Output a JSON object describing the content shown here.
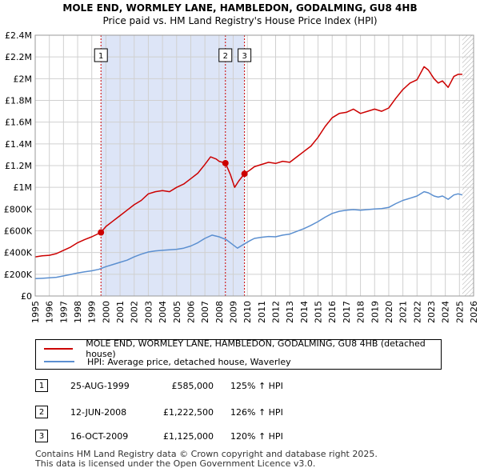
{
  "title": "MOLE END, WORMLEY LANE, HAMBLEDON, GODALMING, GU8 4HB",
  "subtitle": "Price paid vs. HM Land Registry's House Price Index (HPI)",
  "colors": {
    "property": "#cc0000",
    "hpi": "#5b8fd0",
    "shade": "#dde5f7",
    "hatch": "#aaaaaa",
    "marker": "#cc0000"
  },
  "chart_data": {
    "type": "line",
    "title": "MOLE END, WORMLEY LANE, HAMBLEDON, GODALMING, GU8 4HB",
    "xlabel": "",
    "ylabel": "",
    "xlim": [
      1995,
      2026
    ],
    "ylim": [
      0,
      2400000
    ],
    "grid": true,
    "x_ticks": [
      "1995",
      "1996",
      "1997",
      "1998",
      "1999",
      "2000",
      "2001",
      "2002",
      "2003",
      "2004",
      "2005",
      "2006",
      "2007",
      "2008",
      "2009",
      "2010",
      "2011",
      "2012",
      "2013",
      "2014",
      "2015",
      "2016",
      "2017",
      "2018",
      "2019",
      "2020",
      "2021",
      "2022",
      "2023",
      "2024",
      "2025",
      "2026"
    ],
    "y_ticks": [
      {
        "value": 0,
        "label": "£0"
      },
      {
        "value": 200000,
        "label": "£200K"
      },
      {
        "value": 400000,
        "label": "£400K"
      },
      {
        "value": 600000,
        "label": "£600K"
      },
      {
        "value": 800000,
        "label": "£800K"
      },
      {
        "value": 1000000,
        "label": "£1M"
      },
      {
        "value": 1200000,
        "label": "£1.2M"
      },
      {
        "value": 1400000,
        "label": "£1.4M"
      },
      {
        "value": 1600000,
        "label": "£1.6M"
      },
      {
        "value": 1800000,
        "label": "£1.8M"
      },
      {
        "value": 2000000,
        "label": "£2M"
      },
      {
        "value": 2200000,
        "label": "£2.2M"
      },
      {
        "value": 2400000,
        "label": "£2.4M"
      }
    ],
    "shaded_period": [
      1999.65,
      2009.8
    ],
    "hatched_after": 2025.2,
    "series": [
      {
        "name": "MOLE END, WORMLEY LANE, HAMBLEDON, GODALMING, GU8 4HB (detached house)",
        "color": "#cc0000",
        "x": [
          1995.0,
          1995.5,
          1996.0,
          1996.5,
          1997.0,
          1997.5,
          1998.0,
          1998.5,
          1999.0,
          1999.65,
          2000.0,
          2000.5,
          2001.0,
          2001.5,
          2002.0,
          2002.5,
          2003.0,
          2003.5,
          2004.0,
          2004.5,
          2005.0,
          2005.5,
          2006.0,
          2006.5,
          2007.0,
          2007.4,
          2007.8,
          2008.0,
          2008.45,
          2008.8,
          2009.1,
          2009.4,
          2009.8,
          2010.2,
          2010.5,
          2011.0,
          2011.5,
          2012.0,
          2012.5,
          2013.0,
          2013.5,
          2014.0,
          2014.5,
          2015.0,
          2015.5,
          2016.0,
          2016.5,
          2017.0,
          2017.5,
          2018.0,
          2018.5,
          2019.0,
          2019.5,
          2020.0,
          2020.5,
          2021.0,
          2021.5,
          2022.0,
          2022.5,
          2022.8,
          2023.2,
          2023.5,
          2023.8,
          2024.2,
          2024.6,
          2024.9,
          2025.2
        ],
        "y": [
          360000,
          370000,
          375000,
          390000,
          420000,
          450000,
          490000,
          520000,
          545000,
          585000,
          640000,
          690000,
          740000,
          790000,
          840000,
          880000,
          940000,
          960000,
          970000,
          960000,
          1000000,
          1030000,
          1080000,
          1130000,
          1210000,
          1280000,
          1260000,
          1240000,
          1222500,
          1120000,
          1000000,
          1060000,
          1125000,
          1160000,
          1190000,
          1210000,
          1230000,
          1220000,
          1240000,
          1230000,
          1280000,
          1330000,
          1380000,
          1460000,
          1560000,
          1640000,
          1680000,
          1690000,
          1720000,
          1680000,
          1700000,
          1720000,
          1700000,
          1730000,
          1820000,
          1900000,
          1960000,
          1990000,
          2110000,
          2080000,
          2000000,
          1960000,
          1980000,
          1920000,
          2020000,
          2040000,
          2040000
        ]
      },
      {
        "name": "HPI: Average price, detached house, Waverley",
        "color": "#5b8fd0",
        "x": [
          1995.0,
          1995.5,
          1996.0,
          1996.5,
          1997.0,
          1997.5,
          1998.0,
          1998.5,
          1999.0,
          1999.5,
          2000.0,
          2000.5,
          2001.0,
          2001.5,
          2002.0,
          2002.5,
          2003.0,
          2003.5,
          2004.0,
          2004.5,
          2005.0,
          2005.5,
          2006.0,
          2006.5,
          2007.0,
          2007.5,
          2008.0,
          2008.5,
          2009.0,
          2009.3,
          2009.8,
          2010.2,
          2010.5,
          2011.0,
          2011.5,
          2012.0,
          2012.5,
          2013.0,
          2013.5,
          2014.0,
          2014.5,
          2015.0,
          2015.5,
          2016.0,
          2016.5,
          2017.0,
          2017.5,
          2018.0,
          2018.5,
          2019.0,
          2019.5,
          2020.0,
          2020.5,
          2021.0,
          2021.5,
          2022.0,
          2022.5,
          2022.8,
          2023.2,
          2023.5,
          2023.8,
          2024.2,
          2024.6,
          2024.9,
          2025.2
        ],
        "y": [
          160000,
          163000,
          167000,
          172000,
          185000,
          198000,
          212000,
          222000,
          232000,
          245000,
          270000,
          290000,
          310000,
          330000,
          360000,
          385000,
          405000,
          415000,
          420000,
          425000,
          430000,
          440000,
          460000,
          490000,
          530000,
          560000,
          545000,
          520000,
          470000,
          440000,
          480000,
          510000,
          530000,
          540000,
          548000,
          545000,
          560000,
          570000,
          595000,
          620000,
          650000,
          685000,
          725000,
          760000,
          780000,
          790000,
          795000,
          790000,
          795000,
          800000,
          805000,
          815000,
          850000,
          880000,
          900000,
          920000,
          960000,
          950000,
          920000,
          910000,
          920000,
          890000,
          930000,
          940000,
          930000
        ]
      }
    ],
    "sales": [
      {
        "label": "1",
        "x": 1999.65,
        "y": 585000
      },
      {
        "label": "2",
        "x": 2008.45,
        "y": 1222500
      },
      {
        "label": "3",
        "x": 2009.8,
        "y": 1125000
      }
    ]
  },
  "legend": {
    "items": [
      {
        "label": "MOLE END, WORMLEY LANE, HAMBLEDON, GODALMING, GU8 4HB (detached house)",
        "color": "#cc0000"
      },
      {
        "label": "HPI: Average price, detached house, Waverley",
        "color": "#5b8fd0"
      }
    ]
  },
  "table": {
    "rows": [
      {
        "num": "1",
        "date": "25-AUG-1999",
        "price": "£585,000",
        "hpi": "125% ↑ HPI"
      },
      {
        "num": "2",
        "date": "12-JUN-2008",
        "price": "£1,222,500",
        "hpi": "126% ↑ HPI"
      },
      {
        "num": "3",
        "date": "16-OCT-2009",
        "price": "£1,125,000",
        "hpi": "120% ↑ HPI"
      }
    ]
  },
  "footer": {
    "line1": "Contains HM Land Registry data © Crown copyright and database right 2025.",
    "line2": "This data is licensed under the Open Government Licence v3.0."
  }
}
